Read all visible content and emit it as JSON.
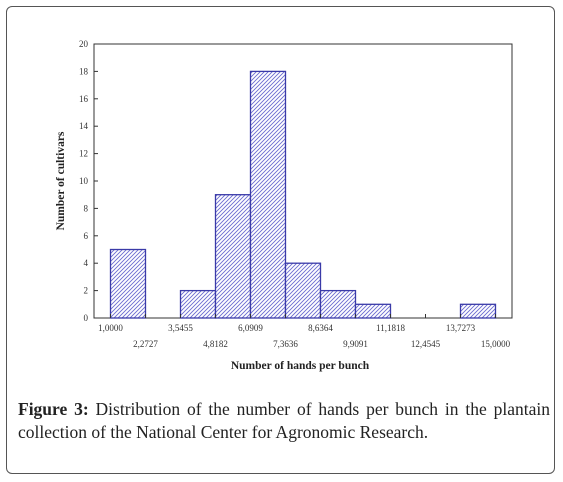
{
  "chart_data": {
    "type": "bar",
    "title": "",
    "xlabel": "Number of hands per bunch",
    "ylabel": "Number of cultivars",
    "ylim": [
      0,
      20
    ],
    "yticks": [
      "0",
      "2",
      "4",
      "6",
      "8",
      "10",
      "12",
      "14",
      "16",
      "18",
      "20"
    ],
    "xlim": [
      0.4,
      15.6
    ],
    "xticks_upper": [
      {
        "x": 1.0,
        "label": "1,0000"
      },
      {
        "x": 3.5455,
        "label": "3,5455"
      },
      {
        "x": 6.0909,
        "label": "6,0909"
      },
      {
        "x": 8.6364,
        "label": "8,6364"
      },
      {
        "x": 11.1818,
        "label": "11,1818"
      },
      {
        "x": 13.7273,
        "label": "13,7273"
      }
    ],
    "xticks_lower": [
      {
        "x": 2.2727,
        "label": "2,2727"
      },
      {
        "x": 4.8182,
        "label": "4,8182"
      },
      {
        "x": 7.3636,
        "label": "7,3636"
      },
      {
        "x": 9.9091,
        "label": "9,9091"
      },
      {
        "x": 12.4545,
        "label": "12,4545"
      },
      {
        "x": 15.0,
        "label": "15,0000"
      }
    ],
    "bins": [
      {
        "from": 1.0,
        "to": 2.2727,
        "value": 5
      },
      {
        "from": 2.2727,
        "to": 3.5455,
        "value": 0
      },
      {
        "from": 3.5455,
        "to": 4.8182,
        "value": 2
      },
      {
        "from": 4.8182,
        "to": 6.0909,
        "value": 9
      },
      {
        "from": 6.0909,
        "to": 7.3636,
        "value": 18
      },
      {
        "from": 7.3636,
        "to": 8.6364,
        "value": 4
      },
      {
        "from": 8.6364,
        "to": 9.9091,
        "value": 2
      },
      {
        "from": 9.9091,
        "to": 11.1818,
        "value": 1
      },
      {
        "from": 11.1818,
        "to": 12.4545,
        "value": 0
      },
      {
        "from": 12.4545,
        "to": 13.7273,
        "value": 0
      },
      {
        "from": 13.7273,
        "to": 15.0,
        "value": 1
      }
    ],
    "bar_color": "#3a3aa8",
    "grid": false
  },
  "caption": {
    "label": "Figure 3:",
    "text": " Distribution of the number of hands per bunch in the plantain collection of the National Center for Agronomic Research."
  }
}
